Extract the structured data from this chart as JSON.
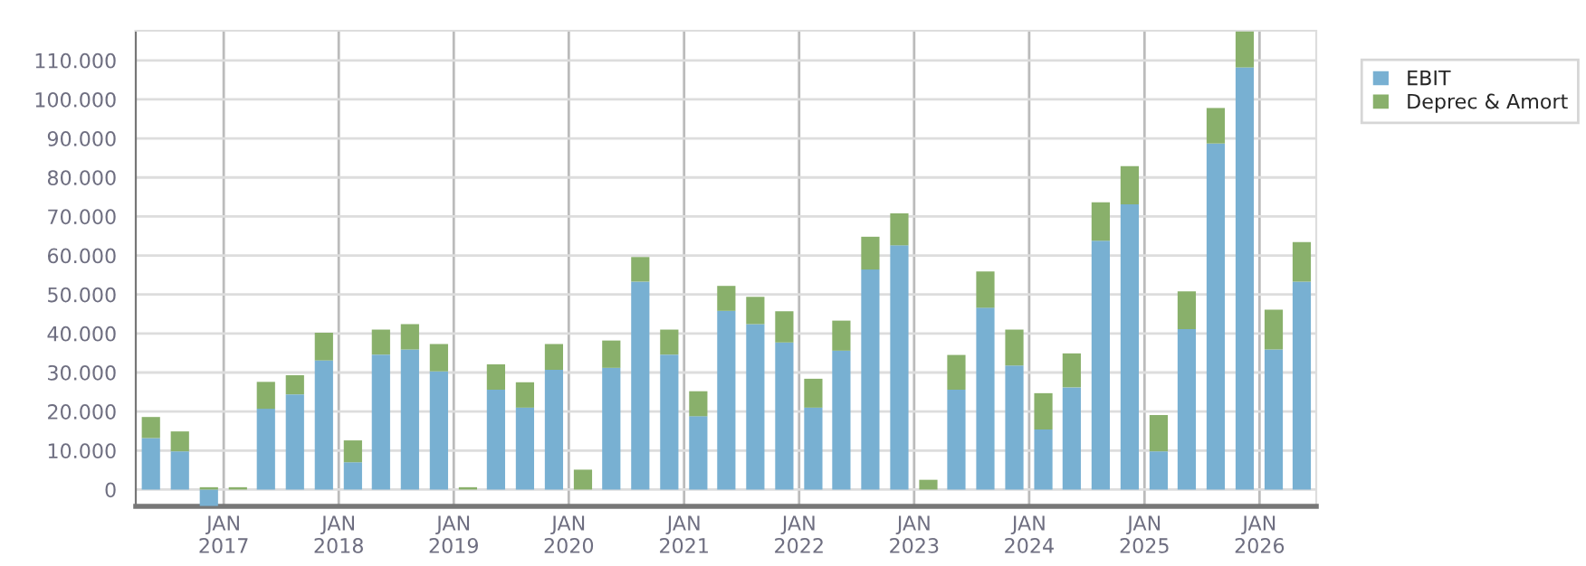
{
  "chart_data": {
    "type": "bar",
    "stacked": true,
    "x": [
      "2016-05-15",
      "2016-08-15",
      "2016-11-15",
      "2017-02-15",
      "2017-05-15",
      "2017-08-15",
      "2017-11-15",
      "2018-02-15",
      "2018-05-15",
      "2018-08-15",
      "2018-11-15",
      "2019-02-15",
      "2019-05-15",
      "2019-08-15",
      "2019-11-15",
      "2020-02-15",
      "2020-05-15",
      "2020-08-15",
      "2020-11-15",
      "2021-02-15",
      "2021-05-15",
      "2021-08-15",
      "2021-11-15",
      "2022-02-15",
      "2022-05-15",
      "2022-08-15",
      "2022-11-15",
      "2023-02-15",
      "2023-05-15",
      "2023-08-15",
      "2023-11-15",
      "2024-02-15",
      "2024-05-15",
      "2024-08-15",
      "2024-11-15",
      "2025-02-15",
      "2025-05-15",
      "2025-08-15",
      "2025-11-15",
      "2026-02-15",
      "2026-05-15"
    ],
    "series": [
      {
        "name": "EBIT",
        "color": "#78b0d2",
        "values": [
          13200,
          9800,
          -4200,
          null,
          20700,
          24400,
          33100,
          7000,
          34600,
          35900,
          30300,
          null,
          25600,
          21000,
          30700,
          0,
          31200,
          53300,
          34600,
          18800,
          45800,
          42400,
          37700,
          21000,
          35600,
          56400,
          62600,
          null,
          25600,
          46600,
          31800,
          15400,
          26200,
          63800,
          73100,
          9800,
          41100,
          88700,
          108200,
          35900,
          53300
        ]
      },
      {
        "name": "Deprec & Amort",
        "color": "#89b06b",
        "values": [
          5400,
          5100,
          600,
          600,
          6900,
          4900,
          7100,
          5600,
          6400,
          6500,
          7000,
          600,
          6500,
          6500,
          6600,
          5100,
          7000,
          6300,
          6400,
          6400,
          6400,
          7000,
          8000,
          7400,
          7700,
          8400,
          8200,
          2500,
          8900,
          9300,
          9200,
          9300,
          8700,
          9800,
          9800,
          9300,
          9700,
          9100,
          9200,
          10200,
          10100
        ]
      }
    ],
    "xlim": [
      "2016-03-28",
      "2026-06-30"
    ],
    "xticks": [
      {
        "value": "2017-01-01",
        "label": "JAN\n2017"
      },
      {
        "value": "2018-01-01",
        "label": "JAN\n2018"
      },
      {
        "value": "2019-01-01",
        "label": "JAN\n2019"
      },
      {
        "value": "2020-01-01",
        "label": "JAN\n2020"
      },
      {
        "value": "2021-01-01",
        "label": "JAN\n2021"
      },
      {
        "value": "2022-01-01",
        "label": "JAN\n2022"
      },
      {
        "value": "2023-01-01",
        "label": "JAN\n2023"
      },
      {
        "value": "2024-01-01",
        "label": "JAN\n2024"
      },
      {
        "value": "2025-01-01",
        "label": "JAN\n2025"
      },
      {
        "value": "2026-01-01",
        "label": "JAN\n2026"
      }
    ],
    "ylim": [
      -4300,
      117600
    ],
    "yticks": [
      0,
      {
        "value": 10000,
        "label": "10.000"
      },
      {
        "value": 20000,
        "label": "20.000"
      },
      {
        "value": 30000,
        "label": "30.000"
      },
      {
        "value": 40000,
        "label": "40.000"
      },
      {
        "value": 50000,
        "label": "50.000"
      },
      {
        "value": 60000,
        "label": "60.000"
      },
      {
        "value": 70000,
        "label": "70.000"
      },
      {
        "value": 80000,
        "label": "80.000"
      },
      {
        "value": 90000,
        "label": "90.000"
      },
      {
        "value": 100000,
        "label": "100.000"
      },
      {
        "value": 110000,
        "label": "110.000"
      }
    ],
    "grid": true,
    "legend": "top right"
  }
}
